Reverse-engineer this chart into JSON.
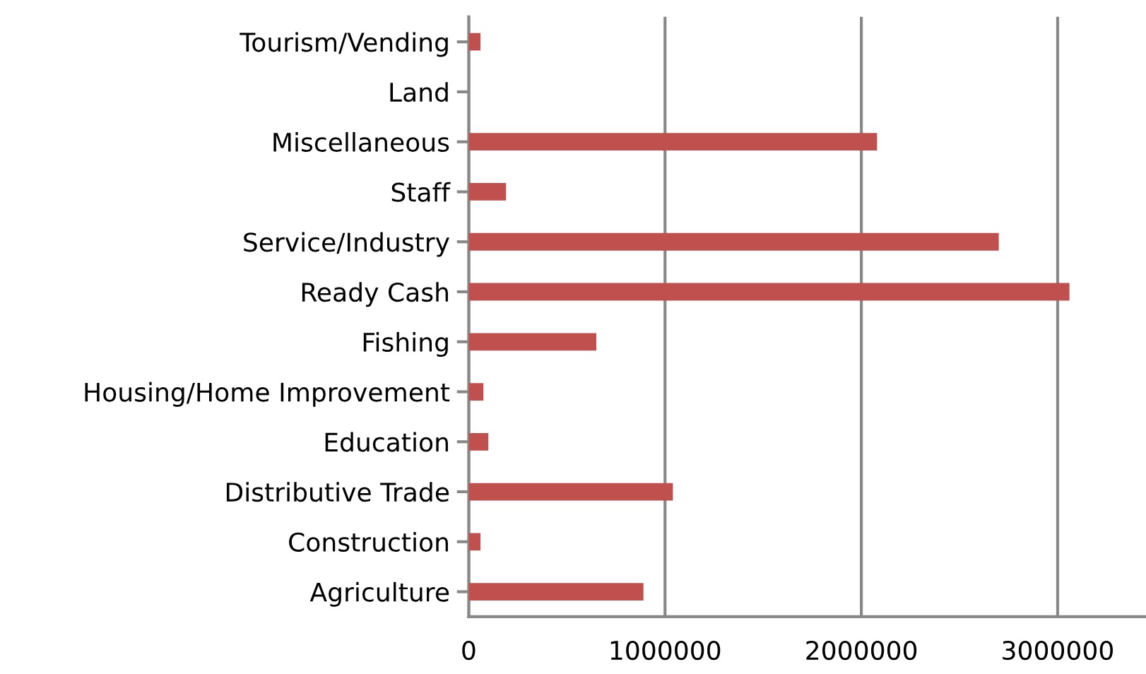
{
  "chart_data": {
    "type": "bar",
    "orientation": "horizontal",
    "categories": [
      "Tourism/Vending",
      "Land",
      "Miscellaneous",
      "Staff",
      "Service/Industry",
      "Ready Cash",
      "Fishing",
      "Housing/Home Improvement",
      "Education",
      "Distributive Trade",
      "Construction",
      "Agriculture"
    ],
    "values": [
      60000,
      0,
      2080000,
      190000,
      2700000,
      3060000,
      650000,
      75000,
      100000,
      1040000,
      60000,
      890000
    ],
    "color": "#c0504d",
    "xlim": [
      0,
      3450000
    ],
    "xticks": [
      0,
      1000000,
      2000000,
      3000000
    ],
    "grid": "x"
  }
}
